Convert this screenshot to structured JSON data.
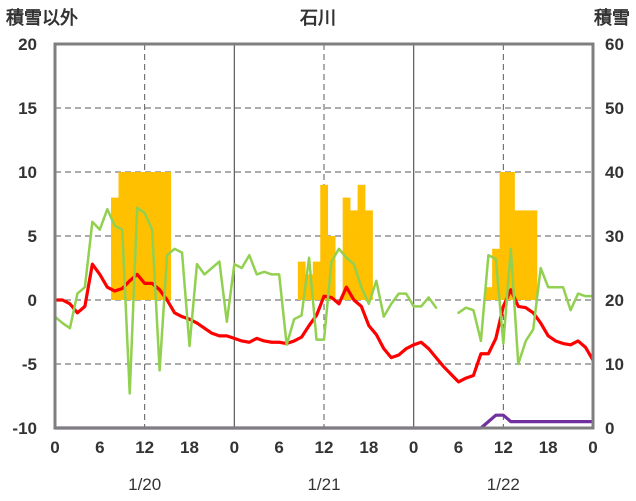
{
  "chart_data": {
    "type": "line+bar",
    "title": "石川",
    "ylabel_left": "積雪以外",
    "ylabel_right": "積雪",
    "ylim_left": [
      -10,
      20
    ],
    "ylim_right": [
      0,
      60
    ],
    "yticks_left": [
      "20",
      "15",
      "10",
      "5",
      "0",
      "-5",
      "-10"
    ],
    "yticks_right": [
      "60",
      "50",
      "40",
      "30",
      "20",
      "10",
      "0"
    ],
    "x_hours_range": [
      0,
      72
    ],
    "xtick_labels": [
      "0",
      "6",
      "12",
      "18",
      "0",
      "6",
      "12",
      "18",
      "0",
      "6",
      "12",
      "18",
      "0"
    ],
    "date_labels": [
      "1/20",
      "1/21",
      "1/22"
    ],
    "colors": {
      "frame": "#7f7f7f",
      "grid": "#595959",
      "bars": "#ffc000",
      "series_red": "#ff0000",
      "series_green": "#92d050",
      "series_purple": "#7030a0"
    },
    "bars": {
      "name": "hourly bars (left axis units)",
      "hours": [
        8,
        9,
        10,
        11,
        12,
        13,
        14,
        15,
        33,
        34,
        35,
        36,
        37,
        39,
        40,
        41,
        42,
        58,
        59,
        60,
        61,
        62,
        63,
        64
      ],
      "values": [
        8,
        10,
        10,
        10,
        10,
        10,
        10,
        10,
        3,
        2,
        3,
        9,
        5,
        8,
        7,
        9,
        7,
        1,
        4,
        10,
        10,
        7,
        7,
        7
      ]
    },
    "series": [
      {
        "name": "red",
        "axis": "left",
        "values": [
          0,
          0,
          -0.3,
          -1,
          -0.5,
          2.8,
          2,
          1,
          0.7,
          0.9,
          1.5,
          2,
          1.3,
          1.3,
          0.8,
          0,
          -1,
          -1.3,
          -1.5,
          -1.8,
          -2.2,
          -2.6,
          -2.8,
          -2.8,
          -3,
          -3.2,
          -3.3,
          -3,
          -3.2,
          -3.3,
          -3.3,
          -3.4,
          -3.2,
          -2.9,
          -2,
          -1.2,
          0.3,
          0.2,
          -0.3,
          1,
          0,
          -0.5,
          -2,
          -2.7,
          -3.8,
          -4.5,
          -4.3,
          -3.8,
          -3.5,
          -3.3,
          -3.8,
          -4.5,
          -5.2,
          -5.8,
          -6.4,
          -6.1,
          -5.9,
          -4.2,
          -4.2,
          -3,
          -0.5,
          0.8,
          -0.5,
          -0.6,
          -1,
          -1.8,
          -2.8,
          -3.2,
          -3.4,
          -3.5,
          -3.2,
          -3.7,
          -4.7
        ]
      },
      {
        "name": "green",
        "axis": "left",
        "values": [
          -1.3,
          -1.8,
          -2.2,
          0.5,
          1,
          6.1,
          5.5,
          7.1,
          5.8,
          5.5,
          -7.3,
          7.2,
          6.8,
          5.5,
          -5.5,
          3.5,
          4,
          3.7,
          -3.6,
          2.8,
          2,
          2.5,
          3,
          -1.7,
          2.8,
          2.5,
          3.5,
          2,
          2.2,
          2,
          2,
          -3.5,
          -1.5,
          -1.2,
          3.3,
          -3.1,
          -3.1,
          3,
          4,
          3.3,
          2.8,
          1,
          -0.3,
          1.5,
          -1.3,
          -0.3,
          0.5,
          0.5,
          -0.5,
          -0.5,
          0.2,
          -0.6,
          null,
          null,
          -1,
          -0.6,
          -0.8,
          -3.2,
          3.5,
          3.2,
          -3.4,
          4,
          -5,
          -3.2,
          -2.3,
          2.5,
          1,
          1,
          1,
          -0.8,
          0.5,
          0.3,
          0.3
        ]
      },
      {
        "name": "purple",
        "axis": "right",
        "values": [
          0,
          0,
          0,
          0,
          0,
          0,
          0,
          0,
          0,
          0,
          0,
          0,
          0,
          0,
          0,
          0,
          0,
          0,
          0,
          0,
          0,
          0,
          0,
          0,
          0,
          0,
          0,
          0,
          0,
          0,
          0,
          0,
          0,
          0,
          0,
          0,
          0,
          0,
          0,
          0,
          0,
          0,
          0,
          0,
          0,
          0,
          0,
          0,
          0,
          0,
          0,
          0,
          0,
          0,
          0,
          0,
          0,
          0,
          1,
          2,
          2,
          1,
          1,
          1,
          1,
          1,
          1,
          1,
          1,
          1,
          1,
          1,
          1
        ]
      }
    ]
  }
}
